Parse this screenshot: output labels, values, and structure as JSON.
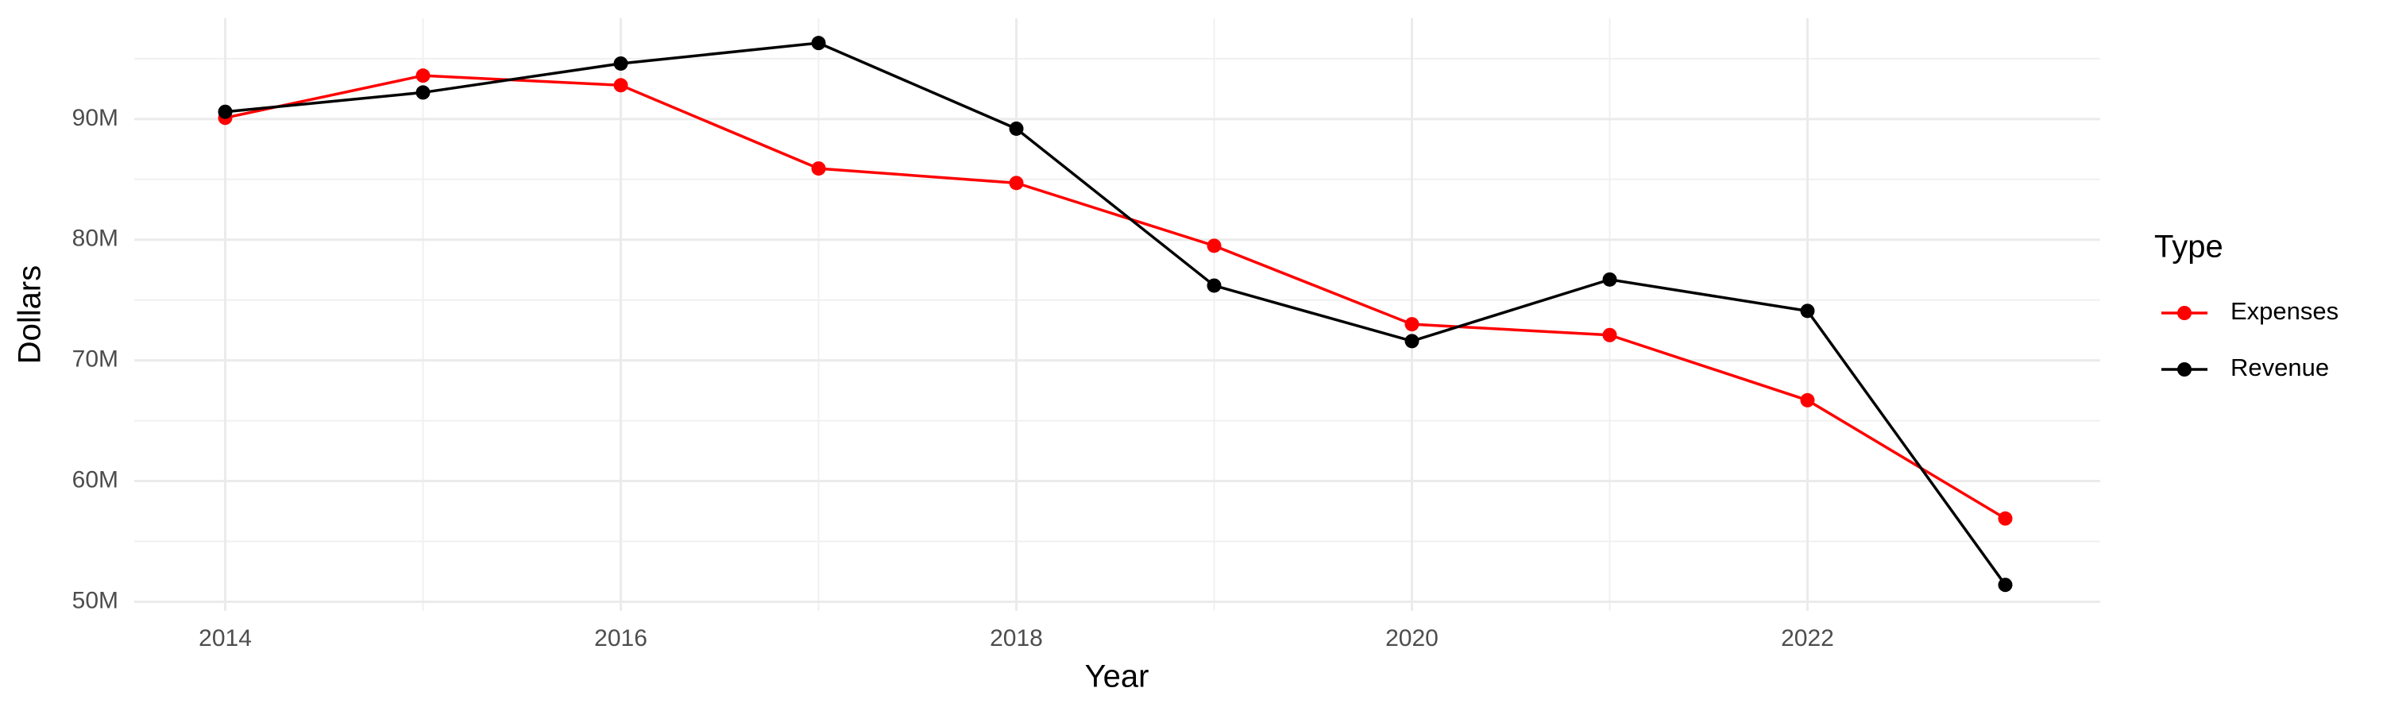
{
  "chart_data": {
    "type": "line",
    "x_label": "Year",
    "y_label": "Dollars",
    "x": [
      2014,
      2015,
      2016,
      2017,
      2018,
      2019,
      2020,
      2021,
      2022,
      2023
    ],
    "series": [
      {
        "name": "Expenses",
        "color": "#ff0000",
        "values": [
          90100000,
          93600000,
          92800000,
          85900000,
          84700000,
          79500000,
          73000000,
          72100000,
          66700000,
          56900000
        ]
      },
      {
        "name": "Revenue",
        "color": "#000000",
        "values": [
          90600000,
          92200000,
          94600000,
          96300000,
          89200000,
          76200000,
          71600000,
          76700000,
          74100000,
          51400000
        ]
      }
    ],
    "xlim": [
      2013.54,
      2023.48
    ],
    "xticks": [
      2014,
      2016,
      2018,
      2020,
      2022
    ],
    "ylim": [
      49240000,
      98350000
    ],
    "yticks": [
      {
        "value": 50000000,
        "label": "50M"
      },
      {
        "value": 60000000,
        "label": "60M"
      },
      {
        "value": 70000000,
        "label": "70M"
      },
      {
        "value": 80000000,
        "label": "80M"
      },
      {
        "value": 90000000,
        "label": "90M"
      }
    ],
    "grid": true,
    "legend_title": "Type",
    "legend_position": "right"
  }
}
